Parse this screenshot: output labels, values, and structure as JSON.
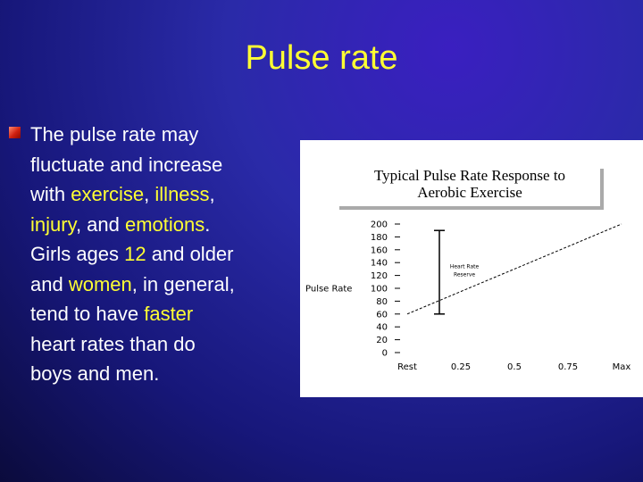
{
  "slide": {
    "title": "Pulse rate",
    "paragraph": [
      [
        {
          "t": "The pulse rate may"
        }
      ],
      [
        {
          "t": "fluctuate and increase"
        }
      ],
      [
        {
          "t": "with "
        },
        {
          "t": "exercise",
          "h": true
        },
        {
          "t": ", "
        },
        {
          "t": "illness",
          "h": true
        },
        {
          "t": ","
        }
      ],
      [
        {
          "t": "injury",
          "h": true
        },
        {
          "t": ", and "
        },
        {
          "t": "emotions",
          "h": true
        },
        {
          "t": "."
        }
      ],
      [
        {
          "t": "Girls ages "
        },
        {
          "t": "12",
          "h": true
        },
        {
          "t": " and older"
        }
      ],
      [
        {
          "t": "and "
        },
        {
          "t": "women",
          "h": true
        },
        {
          "t": ", in general,"
        }
      ],
      [
        {
          "t": "tend to have "
        },
        {
          "t": "faster",
          "h": true
        }
      ],
      [
        {
          "t": "heart rates than do"
        }
      ],
      [
        {
          "t": "boys and men."
        }
      ]
    ]
  },
  "colors": {
    "title": "#ffff33",
    "text": "#ffffff",
    "highlight": "#ffff33",
    "bullet": "#d02010",
    "background": "#1e1e8c"
  },
  "chart_data": {
    "type": "line",
    "title": "Typical Pulse Rate Response to Aerobic Exercise",
    "ylabel": "Pulse Rate",
    "xlabel": "",
    "x_categories": [
      "Rest",
      "0.25",
      "0.5",
      "0.75",
      "Max"
    ],
    "y_ticks": [
      0,
      20,
      40,
      60,
      80,
      100,
      120,
      140,
      160,
      180,
      200
    ],
    "ylim": [
      0,
      200
    ],
    "series": [
      {
        "values": [
          {
            "x": 0,
            "y": 60
          },
          {
            "x": 1,
            "y": 200
          }
        ]
      }
    ],
    "annotation": {
      "label": "Heart Rate Reserve",
      "x": 0.15,
      "y_low": 60,
      "y_high": 190
    },
    "grid": false
  }
}
